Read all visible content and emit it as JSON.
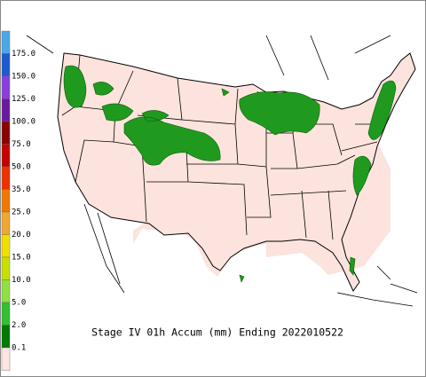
{
  "legend": {
    "labels": [
      "175.0",
      "150.0",
      "125.0",
      "100.0",
      "75.0",
      "50.0",
      "35.0",
      "25.0",
      "20.0",
      "15.0",
      "10.0",
      "5.0",
      "2.0",
      "0.1"
    ],
    "colors": [
      "#4aa8e8",
      "#1e5ad0",
      "#8a3ee0",
      "#6a1aa0",
      "#8b0000",
      "#c80000",
      "#f03000",
      "#f07800",
      "#f0a830",
      "#f0e000",
      "#c8e000",
      "#90e040",
      "#30c030",
      "#007a00",
      "#ffe4e1"
    ]
  },
  "caption": "Stage IV 01h Accum (mm) Ending 2022010522"
}
